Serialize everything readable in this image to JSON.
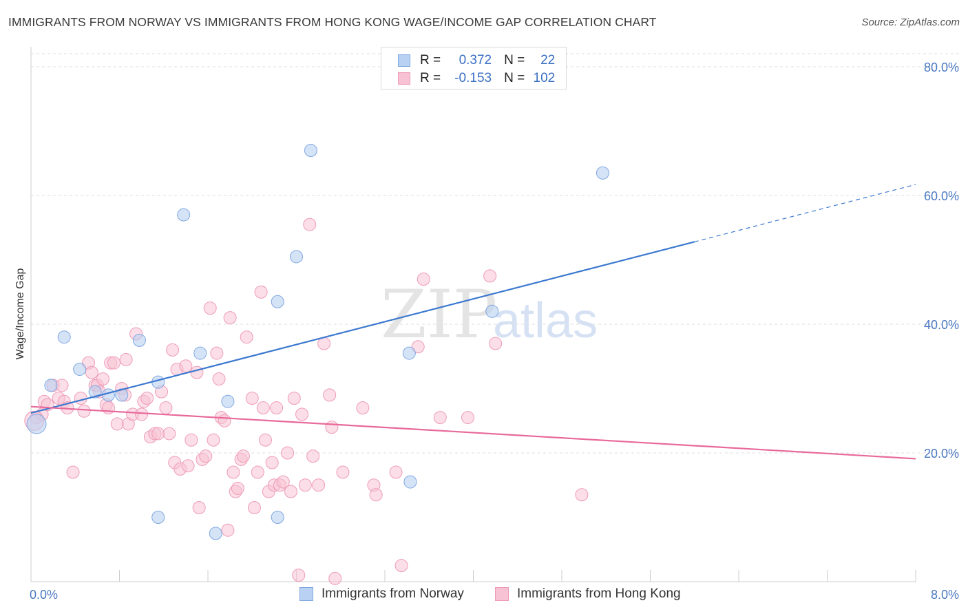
{
  "title": "IMMIGRANTS FROM NORWAY VS IMMIGRANTS FROM HONG KONG WAGE/INCOME GAP CORRELATION CHART",
  "source": "Source: ZipAtlas.com",
  "watermark": {
    "zip": "ZIP",
    "atlas": "atlas"
  },
  "legend": {
    "norway": {
      "r_label": "R =",
      "r_value": "0.372",
      "n_label": "N =",
      "n_value": "22"
    },
    "hongkong": {
      "r_label": "R =",
      "r_value": "-0.153",
      "n_label": "N =",
      "n_value": "102"
    }
  },
  "bottom_legend": {
    "norway_label": "Immigrants from Norway",
    "hongkong_label": "Immigrants from Hong Kong"
  },
  "colors": {
    "norway_fill": "#b9d1f2",
    "norway_stroke": "#7fa7e0",
    "norway_line": "#3b78d0",
    "hongkong_fill": "#f7c3d4",
    "hongkong_stroke": "#ee9bb8",
    "hongkong_line": "#e8699a",
    "axis_text": "#4a78c2",
    "grid": "#dddddd"
  },
  "chart_data": {
    "type": "scatter",
    "title": "IMMIGRANTS FROM NORWAY VS IMMIGRANTS FROM HONG KONG WAGE/INCOME GAP CORRELATION CHART",
    "xlabel": "",
    "ylabel": "Wage/Income Gap",
    "xlim": [
      0,
      8
    ],
    "ylim": [
      0,
      80
    ],
    "x_tick_labels": [
      "0.0%",
      "8.0%"
    ],
    "y_ticks": [
      20,
      40,
      60,
      80
    ],
    "y_tick_labels": [
      "20.0%",
      "40.0%",
      "60.0%",
      "80.0%"
    ],
    "grid": true,
    "legend_position": "top-center",
    "series": [
      {
        "name": "Immigrants from Norway",
        "points": [
          [
            0.05,
            24.5
          ],
          [
            0.18,
            30.5
          ],
          [
            0.3,
            38.0
          ],
          [
            0.44,
            33.0
          ],
          [
            0.58,
            29.5
          ],
          [
            0.7,
            29.0
          ],
          [
            0.82,
            29.0
          ],
          [
            0.98,
            37.5
          ],
          [
            1.15,
            31.0
          ],
          [
            1.15,
            10.0
          ],
          [
            1.38,
            57.0
          ],
          [
            1.53,
            35.5
          ],
          [
            1.67,
            7.5
          ],
          [
            1.78,
            28.0
          ],
          [
            2.23,
            43.5
          ],
          [
            2.23,
            10.0
          ],
          [
            2.4,
            50.5
          ],
          [
            2.53,
            67.0
          ],
          [
            3.42,
            35.5
          ],
          [
            3.43,
            15.5
          ],
          [
            4.17,
            42.0
          ],
          [
            5.17,
            63.5
          ]
        ],
        "trend": {
          "x0": 0.0,
          "y0": 26.2,
          "x1": 6.0,
          "y1": 52.8,
          "dashed_to_x": 8.0,
          "dashed_to_y": 61.7
        }
      },
      {
        "name": "Immigrants from Hong Kong",
        "points": [
          [
            0.05,
            25.5
          ],
          [
            0.1,
            26.0
          ],
          [
            0.12,
            28.0
          ],
          [
            0.15,
            27.5
          ],
          [
            0.2,
            30.5
          ],
          [
            0.25,
            28.5
          ],
          [
            0.28,
            30.5
          ],
          [
            0.3,
            28.0
          ],
          [
            0.33,
            27.0
          ],
          [
            0.38,
            17.0
          ],
          [
            0.45,
            28.5
          ],
          [
            0.48,
            26.5
          ],
          [
            0.52,
            34.0
          ],
          [
            0.55,
            32.5
          ],
          [
            0.58,
            30.5
          ],
          [
            0.6,
            30.5
          ],
          [
            0.62,
            29.5
          ],
          [
            0.65,
            31.5
          ],
          [
            0.68,
            27.5
          ],
          [
            0.7,
            27.0
          ],
          [
            0.72,
            34.0
          ],
          [
            0.75,
            34.0
          ],
          [
            0.78,
            24.5
          ],
          [
            0.82,
            30.0
          ],
          [
            0.85,
            29.0
          ],
          [
            0.86,
            34.5
          ],
          [
            0.88,
            24.5
          ],
          [
            0.92,
            26.0
          ],
          [
            0.95,
            38.5
          ],
          [
            1.0,
            26.0
          ],
          [
            1.02,
            28.0
          ],
          [
            1.05,
            28.5
          ],
          [
            1.08,
            22.5
          ],
          [
            1.12,
            23.0
          ],
          [
            1.15,
            23.0
          ],
          [
            1.18,
            29.5
          ],
          [
            1.22,
            27.0
          ],
          [
            1.25,
            23.0
          ],
          [
            1.28,
            36.0
          ],
          [
            1.3,
            18.5
          ],
          [
            1.32,
            33.0
          ],
          [
            1.35,
            17.5
          ],
          [
            1.4,
            33.5
          ],
          [
            1.42,
            18.0
          ],
          [
            1.45,
            22.0
          ],
          [
            1.5,
            32.5
          ],
          [
            1.52,
            11.5
          ],
          [
            1.55,
            19.0
          ],
          [
            1.58,
            19.5
          ],
          [
            1.62,
            42.5
          ],
          [
            1.65,
            22.0
          ],
          [
            1.68,
            35.5
          ],
          [
            1.7,
            31.5
          ],
          [
            1.72,
            25.5
          ],
          [
            1.75,
            25.0
          ],
          [
            1.78,
            8.0
          ],
          [
            1.8,
            41.0
          ],
          [
            1.83,
            17.0
          ],
          [
            1.85,
            14.0
          ],
          [
            1.87,
            14.5
          ],
          [
            1.9,
            19.0
          ],
          [
            1.92,
            19.5
          ],
          [
            1.95,
            38.0
          ],
          [
            2.0,
            28.5
          ],
          [
            2.02,
            11.5
          ],
          [
            2.05,
            17.0
          ],
          [
            2.08,
            45.0
          ],
          [
            2.1,
            27.0
          ],
          [
            2.12,
            22.0
          ],
          [
            2.15,
            14.0
          ],
          [
            2.18,
            18.5
          ],
          [
            2.2,
            15.0
          ],
          [
            2.22,
            27.0
          ],
          [
            2.25,
            15.0
          ],
          [
            2.28,
            15.5
          ],
          [
            2.32,
            20.0
          ],
          [
            2.35,
            14.0
          ],
          [
            2.38,
            28.5
          ],
          [
            2.42,
            1.0
          ],
          [
            2.45,
            26.0
          ],
          [
            2.48,
            15.0
          ],
          [
            2.52,
            55.5
          ],
          [
            2.55,
            19.5
          ],
          [
            2.6,
            15.0
          ],
          [
            2.65,
            37.0
          ],
          [
            2.7,
            29.0
          ],
          [
            2.72,
            24.0
          ],
          [
            2.75,
            0.5
          ],
          [
            2.82,
            17.0
          ],
          [
            3.0,
            27.0
          ],
          [
            3.1,
            15.0
          ],
          [
            3.12,
            13.5
          ],
          [
            3.3,
            17.0
          ],
          [
            3.35,
            2.5
          ],
          [
            3.5,
            36.5
          ],
          [
            3.55,
            47.0
          ],
          [
            3.7,
            25.5
          ],
          [
            3.95,
            25.5
          ],
          [
            4.15,
            47.5
          ],
          [
            4.2,
            37.0
          ],
          [
            4.98,
            13.5
          ],
          [
            0.03,
            25.0
          ]
        ],
        "trend": {
          "x0": 0.0,
          "y0": 27.2,
          "x1": 8.0,
          "y1": 19.1
        }
      }
    ]
  }
}
